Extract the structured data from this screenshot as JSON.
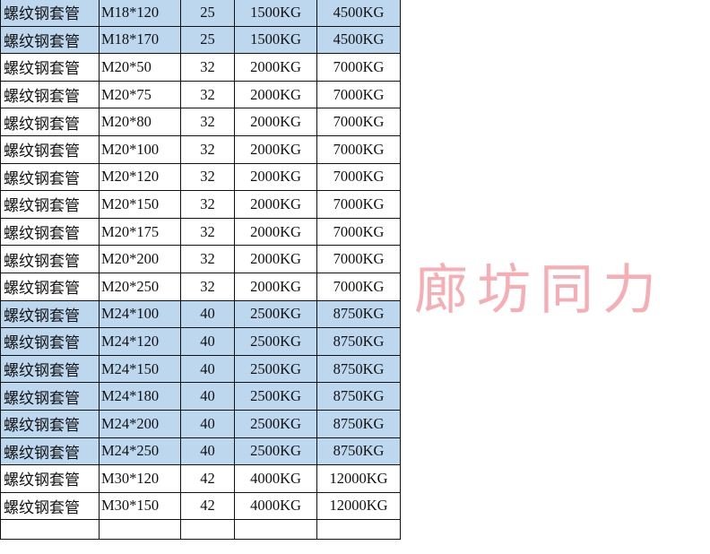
{
  "table": {
    "rows": [
      {
        "name": "螺纹钢套管",
        "spec": "M18*120",
        "diameter": "25",
        "load1": "1500KG",
        "load2": "4500KG",
        "highlight": true
      },
      {
        "name": "螺纹钢套管",
        "spec": "M18*170",
        "diameter": "25",
        "load1": "1500KG",
        "load2": "4500KG",
        "highlight": true
      },
      {
        "name": "螺纹钢套管",
        "spec": "M20*50",
        "diameter": "32",
        "load1": "2000KG",
        "load2": "7000KG",
        "highlight": false
      },
      {
        "name": "螺纹钢套管",
        "spec": "M20*75",
        "diameter": "32",
        "load1": "2000KG",
        "load2": "7000KG",
        "highlight": false
      },
      {
        "name": "螺纹钢套管",
        "spec": "M20*80",
        "diameter": "32",
        "load1": "2000KG",
        "load2": "7000KG",
        "highlight": false
      },
      {
        "name": "螺纹钢套管",
        "spec": "M20*100",
        "diameter": "32",
        "load1": "2000KG",
        "load2": "7000KG",
        "highlight": false
      },
      {
        "name": "螺纹钢套管",
        "spec": "M20*120",
        "diameter": "32",
        "load1": "2000KG",
        "load2": "7000KG",
        "highlight": false
      },
      {
        "name": "螺纹钢套管",
        "spec": "M20*150",
        "diameter": "32",
        "load1": "2000KG",
        "load2": "7000KG",
        "highlight": false
      },
      {
        "name": "螺纹钢套管",
        "spec": "M20*175",
        "diameter": "32",
        "load1": "2000KG",
        "load2": "7000KG",
        "highlight": false
      },
      {
        "name": "螺纹钢套管",
        "spec": "M20*200",
        "diameter": "32",
        "load1": "2000KG",
        "load2": "7000KG",
        "highlight": false
      },
      {
        "name": "螺纹钢套管",
        "spec": "M20*250",
        "diameter": "32",
        "load1": "2000KG",
        "load2": "7000KG",
        "highlight": false
      },
      {
        "name": "螺纹钢套管",
        "spec": "M24*100",
        "diameter": "40",
        "load1": "2500KG",
        "load2": "8750KG",
        "highlight": true
      },
      {
        "name": "螺纹钢套管",
        "spec": "M24*120",
        "diameter": "40",
        "load1": "2500KG",
        "load2": "8750KG",
        "highlight": true
      },
      {
        "name": "螺纹钢套管",
        "spec": "M24*150",
        "diameter": "40",
        "load1": "2500KG",
        "load2": "8750KG",
        "highlight": true
      },
      {
        "name": "螺纹钢套管",
        "spec": "M24*180",
        "diameter": "40",
        "load1": "2500KG",
        "load2": "8750KG",
        "highlight": true
      },
      {
        "name": "螺纹钢套管",
        "spec": "M24*200",
        "diameter": "40",
        "load1": "2500KG",
        "load2": "8750KG",
        "highlight": true
      },
      {
        "name": "螺纹钢套管",
        "spec": "M24*250",
        "diameter": "40",
        "load1": "2500KG",
        "load2": "8750KG",
        "highlight": true
      },
      {
        "name": "螺纹钢套管",
        "spec": "M30*120",
        "diameter": "42",
        "load1": "4000KG",
        "load2": "12000KG",
        "highlight": false
      },
      {
        "name": "螺纹钢套管",
        "spec": "M30*150",
        "diameter": "42",
        "load1": "4000KG",
        "load2": "12000KG",
        "highlight": false
      }
    ],
    "highlight_color": "#bdd7ee"
  },
  "watermark": "廊坊同力"
}
